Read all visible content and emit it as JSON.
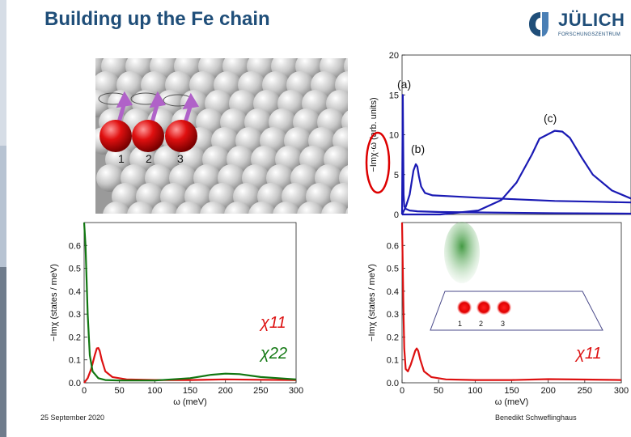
{
  "title": "Building up the Fe chain",
  "logo": {
    "name": "JÜLICH",
    "subtitle": "FORSCHUNGSZENTRUM"
  },
  "footer": {
    "date": "25 September 2020",
    "author": "Benedikt Schweflinghaus"
  },
  "atom_image": {
    "labels": [
      "1",
      "2",
      "3"
    ]
  },
  "inset": {
    "labels": [
      "1",
      "2",
      "3"
    ]
  },
  "colors": {
    "title": "#1f4e79",
    "blue": "#1a1ab4",
    "red": "#dd1111",
    "green": "#117711",
    "highlight": "#dd0000"
  },
  "chart_data": [
    {
      "type": "line",
      "id": "top-right",
      "ylabel": "−Imχ·ω (arb. units)",
      "ylim": [
        0,
        20
      ],
      "yticks": [
        "0",
        "5",
        "10",
        "15",
        "20"
      ],
      "xlim": [
        0,
        300
      ],
      "annotations": [
        "(a)",
        "(b)",
        "(c)"
      ],
      "series": [
        {
          "name": "(a)",
          "color": "blue",
          "x": [
            0,
            1,
            2,
            3,
            5,
            10,
            20,
            50,
            100,
            200,
            300
          ],
          "y": [
            0,
            15,
            2.5,
            1.0,
            0.7,
            0.5,
            0.4,
            0.3,
            0.25,
            0.15,
            0.1
          ]
        },
        {
          "name": "(b)",
          "color": "blue",
          "x": [
            0,
            5,
            10,
            15,
            18,
            20,
            22,
            25,
            30,
            40,
            60,
            100,
            150,
            200,
            250,
            300
          ],
          "y": [
            0,
            1,
            2.5,
            5.5,
            6.3,
            6.0,
            4.8,
            3.5,
            2.7,
            2.4,
            2.3,
            2.1,
            1.9,
            1.7,
            1.6,
            1.5
          ]
        },
        {
          "name": "(c)",
          "color": "blue",
          "x": [
            0,
            50,
            100,
            130,
            150,
            170,
            180,
            200,
            210,
            220,
            235,
            250,
            275,
            300
          ],
          "y": [
            0,
            0,
            0.5,
            1.8,
            4.0,
            7.5,
            9.5,
            10.5,
            10.4,
            9.6,
            7.2,
            5.0,
            3.0,
            2.0
          ]
        }
      ]
    },
    {
      "type": "line",
      "id": "bottom-left",
      "ylabel": "−Imχ (states / meV)",
      "xlabel": "ω (meV)",
      "ylim": [
        0,
        0.7
      ],
      "xlim": [
        0,
        300
      ],
      "yticks": [
        "0.0",
        "0.1",
        "0.2",
        "0.3",
        "0.4",
        "0.5",
        "0.6"
      ],
      "xticks": [
        "0",
        "50",
        "100",
        "150",
        "200",
        "250",
        "300"
      ],
      "legend": [
        "χ11",
        "χ22"
      ],
      "series": [
        {
          "name": "χ11",
          "color": "red",
          "x": [
            0,
            5,
            10,
            15,
            18,
            20,
            22,
            25,
            30,
            40,
            60,
            100,
            150,
            200,
            250,
            300
          ],
          "y": [
            0,
            0.02,
            0.06,
            0.12,
            0.15,
            0.152,
            0.14,
            0.1,
            0.05,
            0.025,
            0.015,
            0.012,
            0.012,
            0.015,
            0.013,
            0.012
          ]
        },
        {
          "name": "χ22",
          "color": "green",
          "x": [
            0,
            2,
            5,
            8,
            12,
            20,
            30,
            50,
            100,
            150,
            180,
            200,
            220,
            250,
            300
          ],
          "y": [
            0.72,
            0.6,
            0.3,
            0.12,
            0.05,
            0.02,
            0.012,
            0.01,
            0.01,
            0.02,
            0.035,
            0.04,
            0.038,
            0.025,
            0.015
          ]
        }
      ]
    },
    {
      "type": "line",
      "id": "bottom-right",
      "ylabel": "−Imχ (states / meV)",
      "xlabel": "ω (meV)",
      "ylim": [
        0,
        0.7
      ],
      "xlim": [
        0,
        300
      ],
      "yticks": [
        "0.0",
        "0.1",
        "0.2",
        "0.3",
        "0.4",
        "0.5",
        "0.6"
      ],
      "xticks": [
        "0",
        "50",
        "100",
        "150",
        "200",
        "250",
        "300"
      ],
      "legend": [
        "χ11"
      ],
      "series": [
        {
          "name": "χ11",
          "color": "red",
          "x": [
            0,
            1,
            2,
            3,
            5,
            8,
            12,
            18,
            20,
            22,
            25,
            30,
            40,
            60,
            100,
            150,
            200,
            250,
            300
          ],
          "y": [
            0.7,
            0.5,
            0.3,
            0.15,
            0.06,
            0.05,
            0.08,
            0.14,
            0.15,
            0.14,
            0.1,
            0.05,
            0.025,
            0.015,
            0.012,
            0.012,
            0.016,
            0.014,
            0.012
          ]
        }
      ]
    }
  ]
}
